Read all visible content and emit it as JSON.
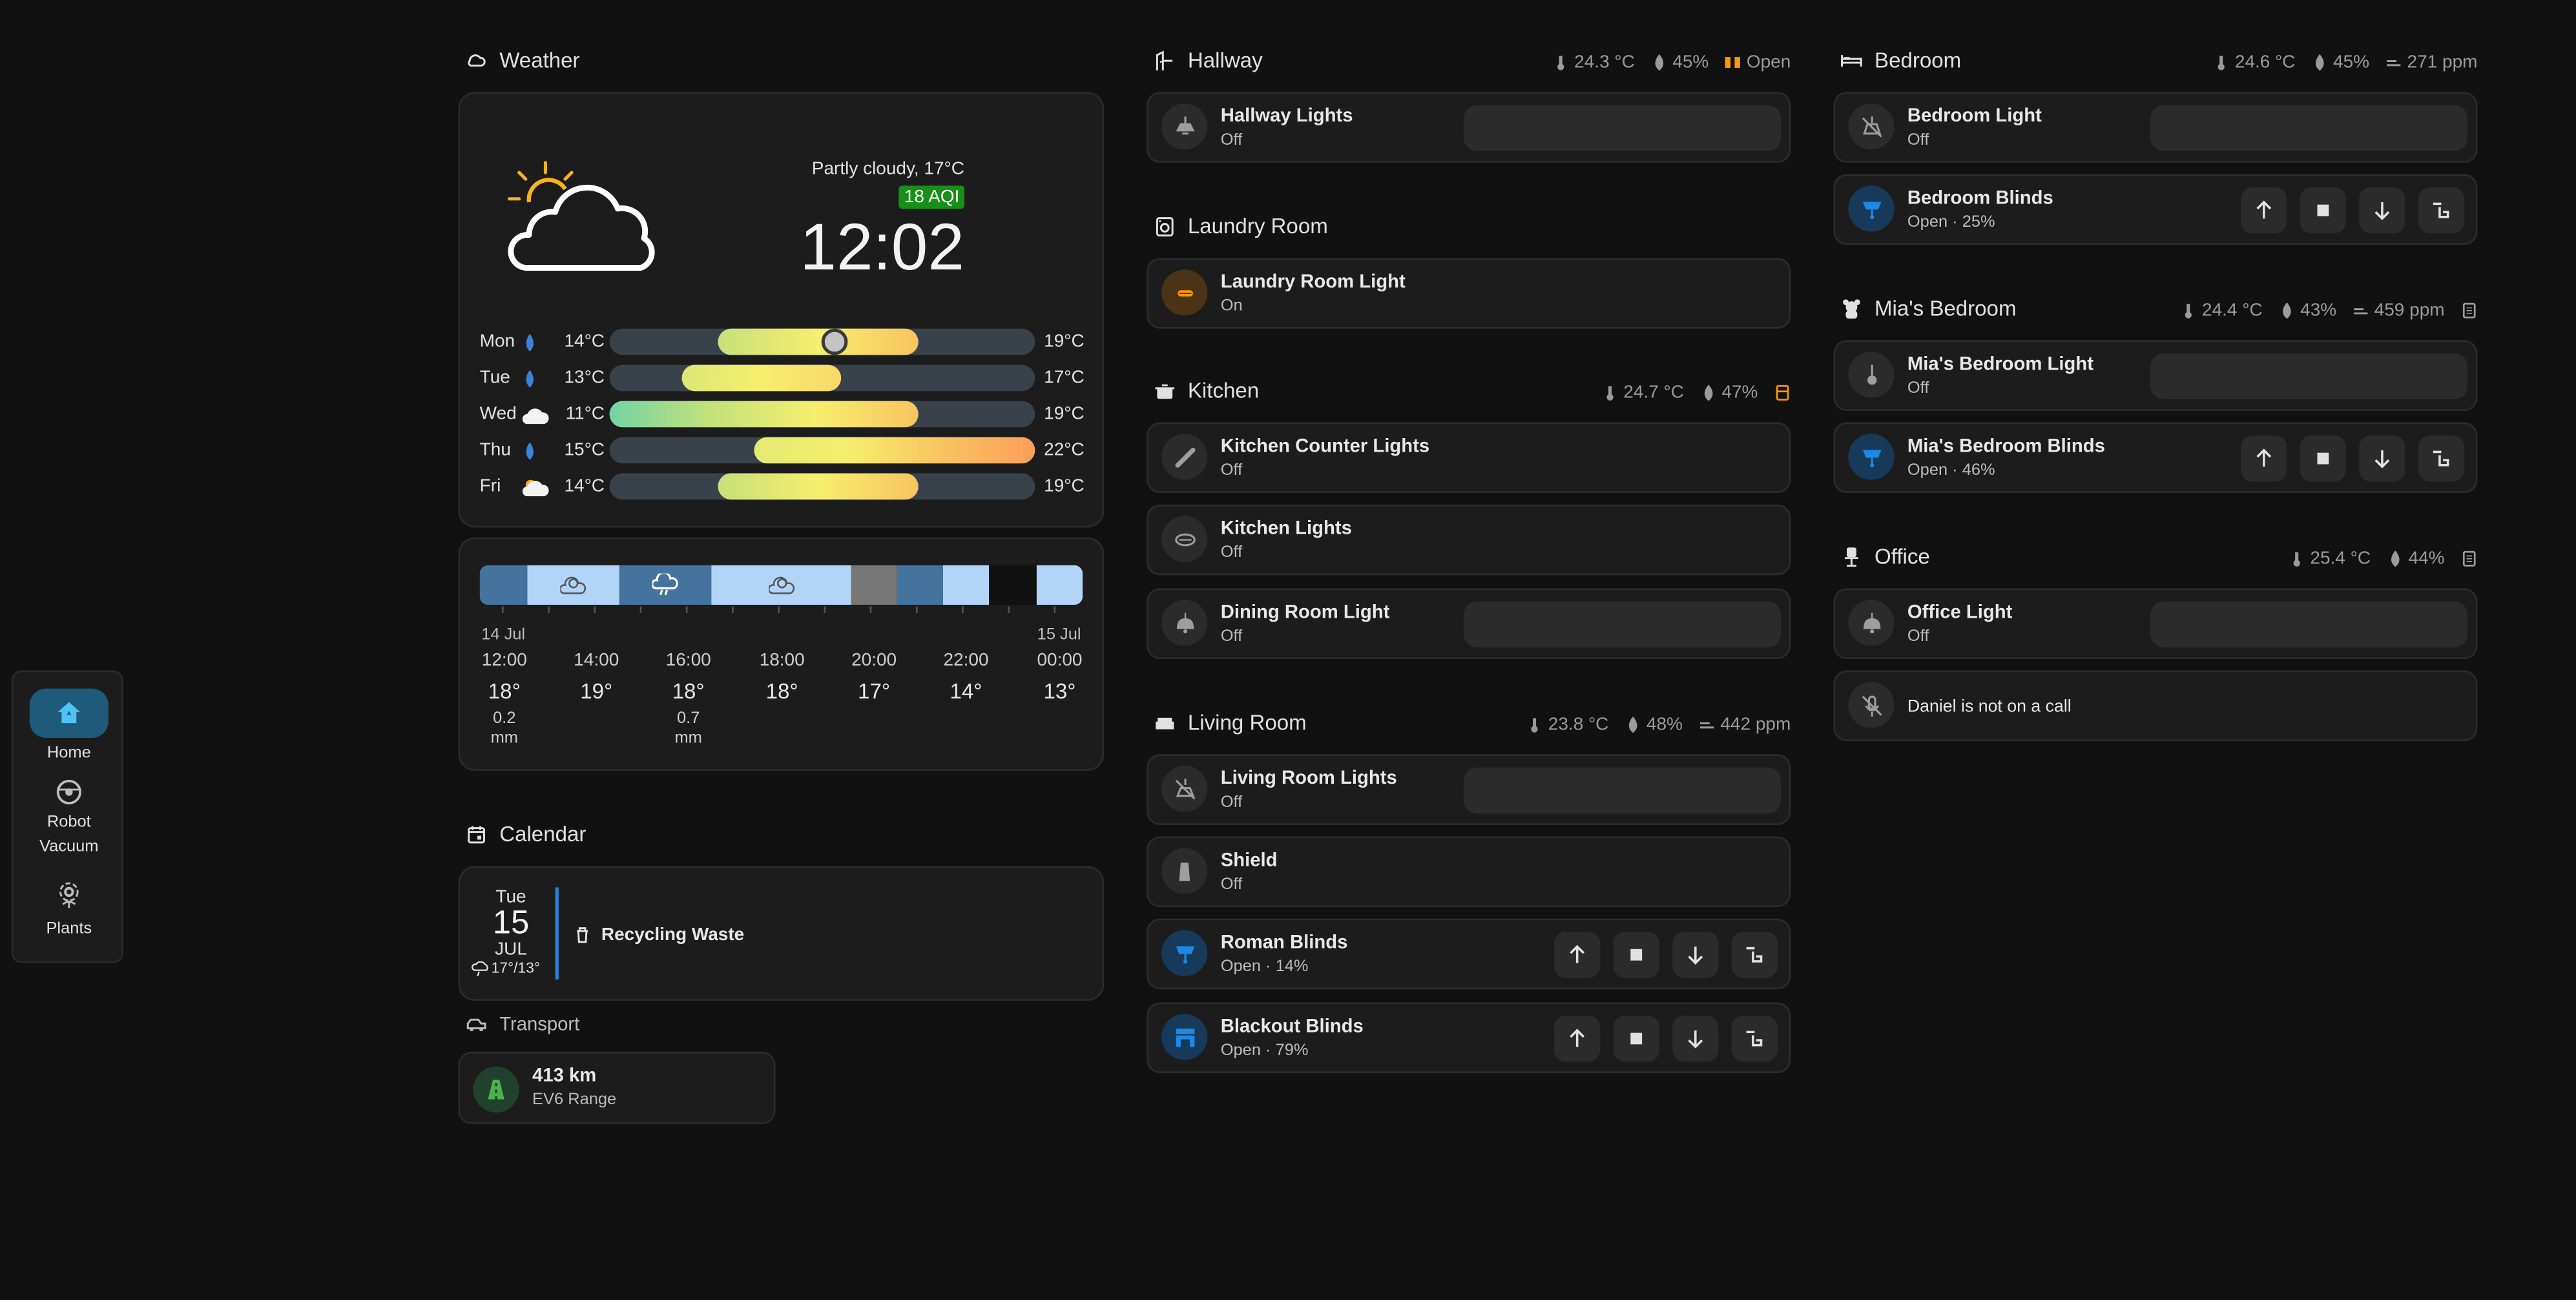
{
  "nav": {
    "items": [
      {
        "label": "Home",
        "icon": "home-icon",
        "active": true
      },
      {
        "label": "Robot\nVacuum",
        "icon": "robot-vacuum-icon"
      },
      {
        "label": "Plants",
        "icon": "flower-icon"
      }
    ]
  },
  "weather": {
    "title": "Weather",
    "condition": "Partly cloudy, 17°C",
    "aqi": "18 AQI",
    "time": "12:02",
    "days": [
      {
        "day": "Mon",
        "icon": "drop-icon",
        "low": "14°C",
        "high": "19°C"
      },
      {
        "day": "Tue",
        "icon": "drop-icon",
        "low": "13°C",
        "high": "17°C"
      },
      {
        "day": "Wed",
        "icon": "cloud-icon",
        "low": "11°C",
        "high": "19°C"
      },
      {
        "day": "Thu",
        "icon": "drop-icon",
        "low": "15°C",
        "high": "22°C"
      },
      {
        "day": "Fri",
        "icon": "partly-cloudy-icon",
        "low": "14°C",
        "high": "19°C"
      }
    ],
    "hourly": [
      {
        "date": "14 Jul",
        "time": "12:00",
        "temp": "18°",
        "precip": "0.2",
        "unit": "mm"
      },
      {
        "date": "",
        "time": "14:00",
        "temp": "19°",
        "precip": "",
        "unit": ""
      },
      {
        "date": "",
        "time": "16:00",
        "temp": "18°",
        "precip": "0.7",
        "unit": "mm"
      },
      {
        "date": "",
        "time": "18:00",
        "temp": "18°",
        "precip": "",
        "unit": ""
      },
      {
        "date": "",
        "time": "20:00",
        "temp": "17°",
        "precip": "",
        "unit": ""
      },
      {
        "date": "",
        "time": "22:00",
        "temp": "14°",
        "precip": "",
        "unit": ""
      },
      {
        "date": "15 Jul",
        "time": "00:00",
        "temp": "13°",
        "precip": "",
        "unit": ""
      }
    ],
    "colors": {
      "rain": "#3d82d6",
      "sun": "#f7b21e"
    }
  },
  "calendar": {
    "title": "Calendar",
    "weekday": "Tue",
    "day": "15",
    "month": "JUL",
    "temps": "17°/13°",
    "event": "Recycling Waste"
  },
  "transport": {
    "title": "Transport",
    "value": "413 km",
    "label": "EV6 Range"
  },
  "hallway": {
    "title": "Hallway",
    "temp": "24.3 °C",
    "humidity": "45%",
    "door": "Open",
    "tiles": [
      {
        "name": "Hallway Lights",
        "state": "Off"
      }
    ]
  },
  "laundry": {
    "title": "Laundry Room",
    "tiles": [
      {
        "name": "Laundry Room Light",
        "state": "On"
      }
    ]
  },
  "kitchen": {
    "title": "Kitchen",
    "temp": "24.7 °C",
    "humidity": "47%",
    "tiles": [
      {
        "name": "Kitchen Counter Lights",
        "state": "Off"
      },
      {
        "name": "Kitchen Lights",
        "state": "Off"
      },
      {
        "name": "Dining Room Light",
        "state": "Off"
      }
    ]
  },
  "living": {
    "title": "Living Room",
    "temp": "23.8 °C",
    "humidity": "48%",
    "co2": "442 ppm",
    "tiles": [
      {
        "name": "Living Room Lights",
        "state": "Off"
      },
      {
        "name": "Shield",
        "state": "Off"
      },
      {
        "name": "Roman Blinds",
        "state": "Open · 14%"
      },
      {
        "name": "Blackout Blinds",
        "state": "Open · 79%"
      }
    ]
  },
  "bedroom": {
    "title": "Bedroom",
    "temp": "24.6 °C",
    "humidity": "45%",
    "co2": "271 ppm",
    "tiles": [
      {
        "name": "Bedroom Light",
        "state": "Off"
      },
      {
        "name": "Bedroom Blinds",
        "state": "Open · 25%"
      }
    ]
  },
  "mias": {
    "title": "Mia's Bedroom",
    "temp": "24.4 °C",
    "humidity": "43%",
    "co2": "459 ppm",
    "tiles": [
      {
        "name": "Mia's Bedroom Light",
        "state": "Off"
      },
      {
        "name": "Mia's Bedroom Blinds",
        "state": "Open · 46%"
      }
    ]
  },
  "office": {
    "title": "Office",
    "temp": "25.4 °C",
    "humidity": "44%",
    "tiles": [
      {
        "name": "Office Light",
        "state": "Off"
      },
      {
        "name": "Daniel is not on a call",
        "state": ""
      }
    ]
  },
  "accent": {
    "blue": "#1e88e5",
    "orange": "#ff9800",
    "green": "#4caf50",
    "aqi_green": "#188f19"
  }
}
